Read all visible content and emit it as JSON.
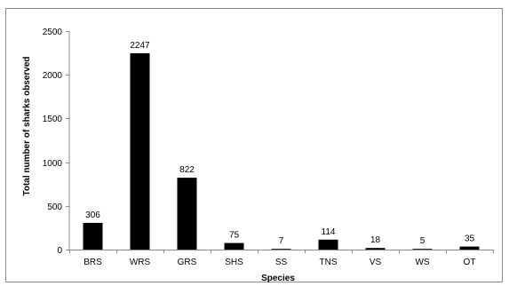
{
  "chart_data": {
    "type": "bar",
    "categories": [
      "BRS",
      "WRS",
      "GRS",
      "SHS",
      "SS",
      "TNS",
      "VS",
      "WS",
      "OT"
    ],
    "values": [
      306,
      2247,
      822,
      75,
      7,
      114,
      18,
      5,
      35
    ],
    "data_labels": [
      "306",
      "2247",
      "822",
      "75",
      "7",
      "114",
      "18",
      "5",
      "35"
    ],
    "title": "",
    "xlabel": "Species",
    "ylabel": "Total number of sharks observed",
    "ylim": [
      0,
      2500
    ],
    "yticks": [
      0,
      500,
      1000,
      1500,
      2000,
      2500
    ],
    "ytick_labels": [
      "0",
      "500",
      "1000",
      "1500",
      "2000",
      "2500"
    ],
    "grid": false,
    "legend": "none",
    "bar_color": "#000000",
    "axis_color": "#8c8c8c"
  }
}
